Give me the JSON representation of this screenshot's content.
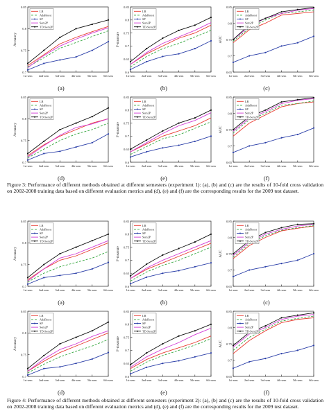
{
  "figures": [
    {
      "caption": "Figure 3: Performance of different methods obtained at different semesters (experiment 1): (a), (b) and (c) are the results of 10-fold cross validation on 2002-2008 training data based on different evaluation metrics and (d), (e) and (f) are the corresponding results for the 2009 test dataset.",
      "panels": [
        "(a)",
        "(b)",
        "(c)",
        "(d)",
        "(e)",
        "(f)"
      ]
    },
    {
      "caption": "Figure 4: Performance of different methods obtained at different semesters (experiment 2): (a), (b) and (c) are the results of 10-fold cross validation on 2002-2008 training data based on different evaluation metrics and (d), (e) and (f) are the corresponding results for the 2009 test dataset.",
      "panels": [
        "(a)",
        "(b)",
        "(c)",
        "(d)",
        "(e)",
        "(f)"
      ]
    }
  ],
  "series_style": [
    {
      "name": "LR",
      "color": "#e8392f",
      "dash": "none",
      "marker": "none"
    },
    {
      "name": "AdaBoost",
      "color": "#37a840",
      "dash": "3,2",
      "marker": "none"
    },
    {
      "name": "SP",
      "color": "#2b3fa8",
      "dash": "none",
      "marker": "dot"
    },
    {
      "name": "Sem2P",
      "color": "#d23ad6",
      "dash": "none",
      "marker": "none"
    },
    {
      "name": "TD-Sem2P",
      "color": "#111111",
      "dash": "none",
      "marker": "dot"
    }
  ],
  "chart_data": [
    {
      "type": "line",
      "figure": "3",
      "panel": "(a)",
      "xlabel": "",
      "ylabel": "Accuracy",
      "categories": [
        "1st-sem",
        "2nd-sem",
        "3rd-sem",
        "4th-sem",
        "5th-sem",
        "6th-sem"
      ],
      "yticks": [
        "0.7",
        "0.75",
        "0.8",
        "0.85"
      ],
      "ylim": [
        0.7,
        0.85
      ],
      "series": [
        {
          "name": "LR",
          "values": [
            0.715,
            0.74,
            0.765,
            0.78,
            0.793,
            0.805
          ]
        },
        {
          "name": "AdaBoost",
          "values": [
            0.712,
            0.733,
            0.755,
            0.768,
            0.782,
            0.795
          ]
        },
        {
          "name": "SP",
          "values": [
            0.705,
            0.72,
            0.728,
            0.735,
            0.75,
            0.77
          ]
        },
        {
          "name": "Sem2P",
          "values": [
            0.71,
            0.738,
            0.76,
            0.776,
            0.79,
            0.802
          ]
        },
        {
          "name": "TD-Sem2P",
          "values": [
            0.72,
            0.75,
            0.78,
            0.8,
            0.81,
            0.82
          ]
        }
      ]
    },
    {
      "type": "line",
      "figure": "3",
      "panel": "(b)",
      "xlabel": "",
      "ylabel": "F-measure",
      "categories": [
        "1st-sem",
        "2nd-sem",
        "3rd-sem",
        "4th-sem",
        "5th-sem",
        "6th-sem"
      ],
      "yticks": [
        "0.6",
        "0.65",
        "0.7",
        "0.75",
        "0.8",
        "0.85"
      ],
      "ylim": [
        0.6,
        0.85
      ],
      "series": [
        {
          "name": "LR",
          "values": [
            0.63,
            0.67,
            0.7,
            0.73,
            0.75,
            0.78
          ]
        },
        {
          "name": "AdaBoost",
          "values": [
            0.62,
            0.66,
            0.69,
            0.71,
            0.735,
            0.76
          ]
        },
        {
          "name": "SP",
          "values": [
            0.61,
            0.64,
            0.66,
            0.67,
            0.69,
            0.72
          ]
        },
        {
          "name": "Sem2P",
          "values": [
            0.63,
            0.675,
            0.71,
            0.735,
            0.76,
            0.79
          ]
        },
        {
          "name": "TD-Sem2P",
          "values": [
            0.64,
            0.69,
            0.73,
            0.76,
            0.78,
            0.81
          ]
        }
      ]
    },
    {
      "type": "line",
      "figure": "3",
      "panel": "(c)",
      "xlabel": "",
      "ylabel": "AUC",
      "categories": [
        "1st-sem",
        "2nd-sem",
        "3rd-sem",
        "4th-sem",
        "5th-sem",
        "6th-sem"
      ],
      "yticks": [
        "0.65",
        "0.7",
        "0.75",
        "0.8",
        "0.85"
      ],
      "ylim": [
        0.65,
        0.85
      ],
      "series": [
        {
          "name": "LR",
          "values": [
            0.74,
            0.78,
            0.8,
            0.825,
            0.83,
            0.835
          ]
        },
        {
          "name": "AdaBoost",
          "values": [
            0.745,
            0.785,
            0.81,
            0.83,
            0.835,
            0.84
          ]
        },
        {
          "name": "SP",
          "values": [
            0.68,
            0.7,
            0.71,
            0.73,
            0.74,
            0.76
          ]
        },
        {
          "name": "Sem2P",
          "values": [
            0.75,
            0.79,
            0.815,
            0.83,
            0.84,
            0.845
          ]
        },
        {
          "name": "TD-Sem2P",
          "values": [
            0.75,
            0.795,
            0.815,
            0.835,
            0.842,
            0.848
          ]
        }
      ]
    },
    {
      "type": "line",
      "figure": "3",
      "panel": "(d)",
      "xlabel": "",
      "ylabel": "Accuracy",
      "categories": [
        "1st-sem",
        "2nd-sem",
        "3rd-sem",
        "4th-sem",
        "5th-sem",
        "6th-sem"
      ],
      "yticks": [
        "0.7",
        "0.75",
        "0.8",
        "0.85"
      ],
      "ylim": [
        0.7,
        0.85
      ],
      "series": [
        {
          "name": "LR",
          "values": [
            0.715,
            0.74,
            0.76,
            0.775,
            0.79,
            0.8
          ]
        },
        {
          "name": "AdaBoost",
          "values": [
            0.71,
            0.73,
            0.75,
            0.765,
            0.775,
            0.79
          ]
        },
        {
          "name": "SP",
          "values": [
            0.705,
            0.72,
            0.725,
            0.735,
            0.745,
            0.765
          ]
        },
        {
          "name": "Sem2P",
          "values": [
            0.712,
            0.738,
            0.762,
            0.78,
            0.788,
            0.8
          ]
        },
        {
          "name": "TD-Sem2P",
          "values": [
            0.72,
            0.748,
            0.775,
            0.79,
            0.805,
            0.825
          ]
        }
      ]
    },
    {
      "type": "line",
      "figure": "3",
      "panel": "(e)",
      "xlabel": "",
      "ylabel": "F-measure",
      "categories": [
        "1st-sem",
        "2nd-sem",
        "3rd-sem",
        "4th-sem",
        "5th-sem",
        "6th-sem"
      ],
      "yticks": [
        "0.6",
        "0.65",
        "0.7",
        "0.75",
        "0.8",
        "0.85"
      ],
      "ylim": [
        0.6,
        0.85
      ],
      "series": [
        {
          "name": "LR",
          "values": [
            0.64,
            0.67,
            0.7,
            0.72,
            0.74,
            0.77
          ]
        },
        {
          "name": "AdaBoost",
          "values": [
            0.63,
            0.66,
            0.69,
            0.705,
            0.73,
            0.755
          ]
        },
        {
          "name": "SP",
          "values": [
            0.62,
            0.64,
            0.655,
            0.665,
            0.68,
            0.7
          ]
        },
        {
          "name": "Sem2P",
          "values": [
            0.64,
            0.675,
            0.71,
            0.74,
            0.76,
            0.79
          ]
        },
        {
          "name": "TD-Sem2P",
          "values": [
            0.65,
            0.685,
            0.72,
            0.75,
            0.77,
            0.8
          ]
        }
      ]
    },
    {
      "type": "line",
      "figure": "3",
      "panel": "(f)",
      "xlabel": "",
      "ylabel": "AUC",
      "categories": [
        "1st-sem",
        "2nd-sem",
        "3rd-sem",
        "4th-sem",
        "5th-sem",
        "6th-sem"
      ],
      "yticks": [
        "0.65",
        "0.7",
        "0.75",
        "0.8",
        "0.85"
      ],
      "ylim": [
        0.65,
        0.85
      ],
      "series": [
        {
          "name": "LR",
          "values": [
            0.73,
            0.77,
            0.795,
            0.82,
            0.83,
            0.835
          ]
        },
        {
          "name": "AdaBoost",
          "values": [
            0.74,
            0.78,
            0.8,
            0.825,
            0.83,
            0.838
          ]
        },
        {
          "name": "SP",
          "values": [
            0.68,
            0.7,
            0.71,
            0.725,
            0.735,
            0.755
          ]
        },
        {
          "name": "Sem2P",
          "values": [
            0.745,
            0.785,
            0.805,
            0.83,
            0.84,
            0.845
          ]
        },
        {
          "name": "TD-Sem2P",
          "values": [
            0.75,
            0.79,
            0.81,
            0.835,
            0.842,
            0.848
          ]
        }
      ]
    },
    {
      "type": "line",
      "figure": "4",
      "panel": "(a)",
      "xlabel": "",
      "ylabel": "Accuracy",
      "categories": [
        "1st-sem",
        "2nd-sem",
        "3rd-sem",
        "4th-sem",
        "5th-sem",
        "6th-sem"
      ],
      "yticks": [
        "0.7",
        "0.75",
        "0.8",
        "0.85"
      ],
      "ylim": [
        0.7,
        0.85
      ],
      "series": [
        {
          "name": "LR",
          "values": [
            0.715,
            0.74,
            0.76,
            0.77,
            0.785,
            0.8
          ]
        },
        {
          "name": "AdaBoost",
          "values": [
            0.71,
            0.73,
            0.745,
            0.755,
            0.765,
            0.78
          ]
        },
        {
          "name": "SP",
          "values": [
            0.705,
            0.72,
            0.725,
            0.73,
            0.74,
            0.755
          ]
        },
        {
          "name": "Sem2P",
          "values": [
            0.712,
            0.74,
            0.765,
            0.775,
            0.79,
            0.805
          ]
        },
        {
          "name": "TD-Sem2P",
          "values": [
            0.72,
            0.75,
            0.775,
            0.79,
            0.805,
            0.82
          ]
        }
      ]
    },
    {
      "type": "line",
      "figure": "4",
      "panel": "(b)",
      "xlabel": "",
      "ylabel": "F-measure",
      "categories": [
        "1st-sem",
        "2nd-sem",
        "3rd-sem",
        "4th-sem",
        "5th-sem",
        "6th-sem"
      ],
      "yticks": [
        "0.6",
        "0.65",
        "0.7",
        "0.75",
        "0.8",
        "0.85"
      ],
      "ylim": [
        0.6,
        0.85
      ],
      "series": [
        {
          "name": "LR",
          "values": [
            0.63,
            0.665,
            0.69,
            0.715,
            0.74,
            0.765
          ]
        },
        {
          "name": "AdaBoost",
          "values": [
            0.62,
            0.655,
            0.68,
            0.7,
            0.725,
            0.75
          ]
        },
        {
          "name": "SP",
          "values": [
            0.61,
            0.635,
            0.65,
            0.66,
            0.675,
            0.69
          ]
        },
        {
          "name": "Sem2P",
          "values": [
            0.63,
            0.67,
            0.7,
            0.725,
            0.75,
            0.775
          ]
        },
        {
          "name": "TD-Sem2P",
          "values": [
            0.64,
            0.685,
            0.72,
            0.745,
            0.77,
            0.8
          ]
        }
      ]
    },
    {
      "type": "line",
      "figure": "4",
      "panel": "(c)",
      "xlabel": "",
      "ylabel": "AUC",
      "categories": [
        "1st-sem",
        "2nd-sem",
        "3rd-sem",
        "4th-sem",
        "5th-sem",
        "6th-sem"
      ],
      "yticks": [
        "0.65",
        "0.7",
        "0.75",
        "0.8",
        "0.85"
      ],
      "ylim": [
        0.65,
        0.85
      ],
      "series": [
        {
          "name": "LR",
          "values": [
            0.735,
            0.775,
            0.8,
            0.82,
            0.828,
            0.835
          ]
        },
        {
          "name": "AdaBoost",
          "values": [
            0.74,
            0.78,
            0.805,
            0.822,
            0.83,
            0.836
          ]
        },
        {
          "name": "SP",
          "values": [
            0.68,
            0.7,
            0.71,
            0.72,
            0.73,
            0.75
          ]
        },
        {
          "name": "Sem2P",
          "values": [
            0.745,
            0.785,
            0.81,
            0.825,
            0.835,
            0.84
          ]
        },
        {
          "name": "TD-Sem2P",
          "values": [
            0.75,
            0.79,
            0.815,
            0.83,
            0.84,
            0.842
          ]
        }
      ]
    },
    {
      "type": "line",
      "figure": "4",
      "panel": "(d)",
      "xlabel": "",
      "ylabel": "Accuracy",
      "categories": [
        "1st-sem",
        "2nd-sem",
        "3rd-sem",
        "4th-sem",
        "5th-sem",
        "6th-sem"
      ],
      "yticks": [
        "0.7",
        "0.75",
        "0.8",
        "0.85"
      ],
      "ylim": [
        0.7,
        0.85
      ],
      "series": [
        {
          "name": "LR",
          "values": [
            0.712,
            0.735,
            0.755,
            0.77,
            0.785,
            0.8
          ]
        },
        {
          "name": "AdaBoost",
          "values": [
            0.708,
            0.728,
            0.745,
            0.758,
            0.77,
            0.785
          ]
        },
        {
          "name": "SP",
          "values": [
            0.703,
            0.718,
            0.722,
            0.73,
            0.74,
            0.755
          ]
        },
        {
          "name": "Sem2P",
          "values": [
            0.712,
            0.74,
            0.762,
            0.775,
            0.792,
            0.805
          ]
        },
        {
          "name": "TD-Sem2P",
          "values": [
            0.718,
            0.748,
            0.775,
            0.79,
            0.805,
            0.825
          ]
        }
      ]
    },
    {
      "type": "line",
      "figure": "4",
      "panel": "(e)",
      "xlabel": "",
      "ylabel": "F-measure",
      "categories": [
        "1st-sem",
        "2nd-sem",
        "3rd-sem",
        "4th-sem",
        "5th-sem",
        "6th-sem"
      ],
      "yticks": [
        "0.6",
        "0.65",
        "0.7",
        "0.75",
        "0.8",
        "0.85"
      ],
      "ylim": [
        0.6,
        0.85
      ],
      "series": [
        {
          "name": "LR",
          "values": [
            0.63,
            0.665,
            0.69,
            0.71,
            0.73,
            0.755
          ]
        },
        {
          "name": "AdaBoost",
          "values": [
            0.62,
            0.655,
            0.68,
            0.7,
            0.72,
            0.745
          ]
        },
        {
          "name": "SP",
          "values": [
            0.61,
            0.635,
            0.65,
            0.66,
            0.675,
            0.69
          ]
        },
        {
          "name": "Sem2P",
          "values": [
            0.635,
            0.675,
            0.705,
            0.73,
            0.76,
            0.785
          ]
        },
        {
          "name": "TD-Sem2P",
          "values": [
            0.645,
            0.69,
            0.725,
            0.755,
            0.775,
            0.8
          ]
        }
      ]
    },
    {
      "type": "line",
      "figure": "4",
      "panel": "(f)",
      "xlabel": "",
      "ylabel": "AUC",
      "categories": [
        "1st-sem",
        "2nd-sem",
        "3rd-sem",
        "4th-sem",
        "5th-sem",
        "6th-sem"
      ],
      "yticks": [
        "0.65",
        "0.7",
        "0.75",
        "0.8",
        "0.85"
      ],
      "ylim": [
        0.65,
        0.85
      ],
      "series": [
        {
          "name": "LR",
          "values": [
            0.72,
            0.76,
            0.79,
            0.815,
            0.825,
            0.83
          ]
        },
        {
          "name": "AdaBoost",
          "values": [
            0.73,
            0.77,
            0.795,
            0.82,
            0.828,
            0.835
          ]
        },
        {
          "name": "SP",
          "values": [
            0.675,
            0.695,
            0.705,
            0.72,
            0.73,
            0.745
          ]
        },
        {
          "name": "Sem2P",
          "values": [
            0.74,
            0.78,
            0.8,
            0.825,
            0.835,
            0.84
          ]
        },
        {
          "name": "TD-Sem2P",
          "values": [
            0.745,
            0.785,
            0.805,
            0.83,
            0.838,
            0.845
          ]
        }
      ]
    }
  ]
}
